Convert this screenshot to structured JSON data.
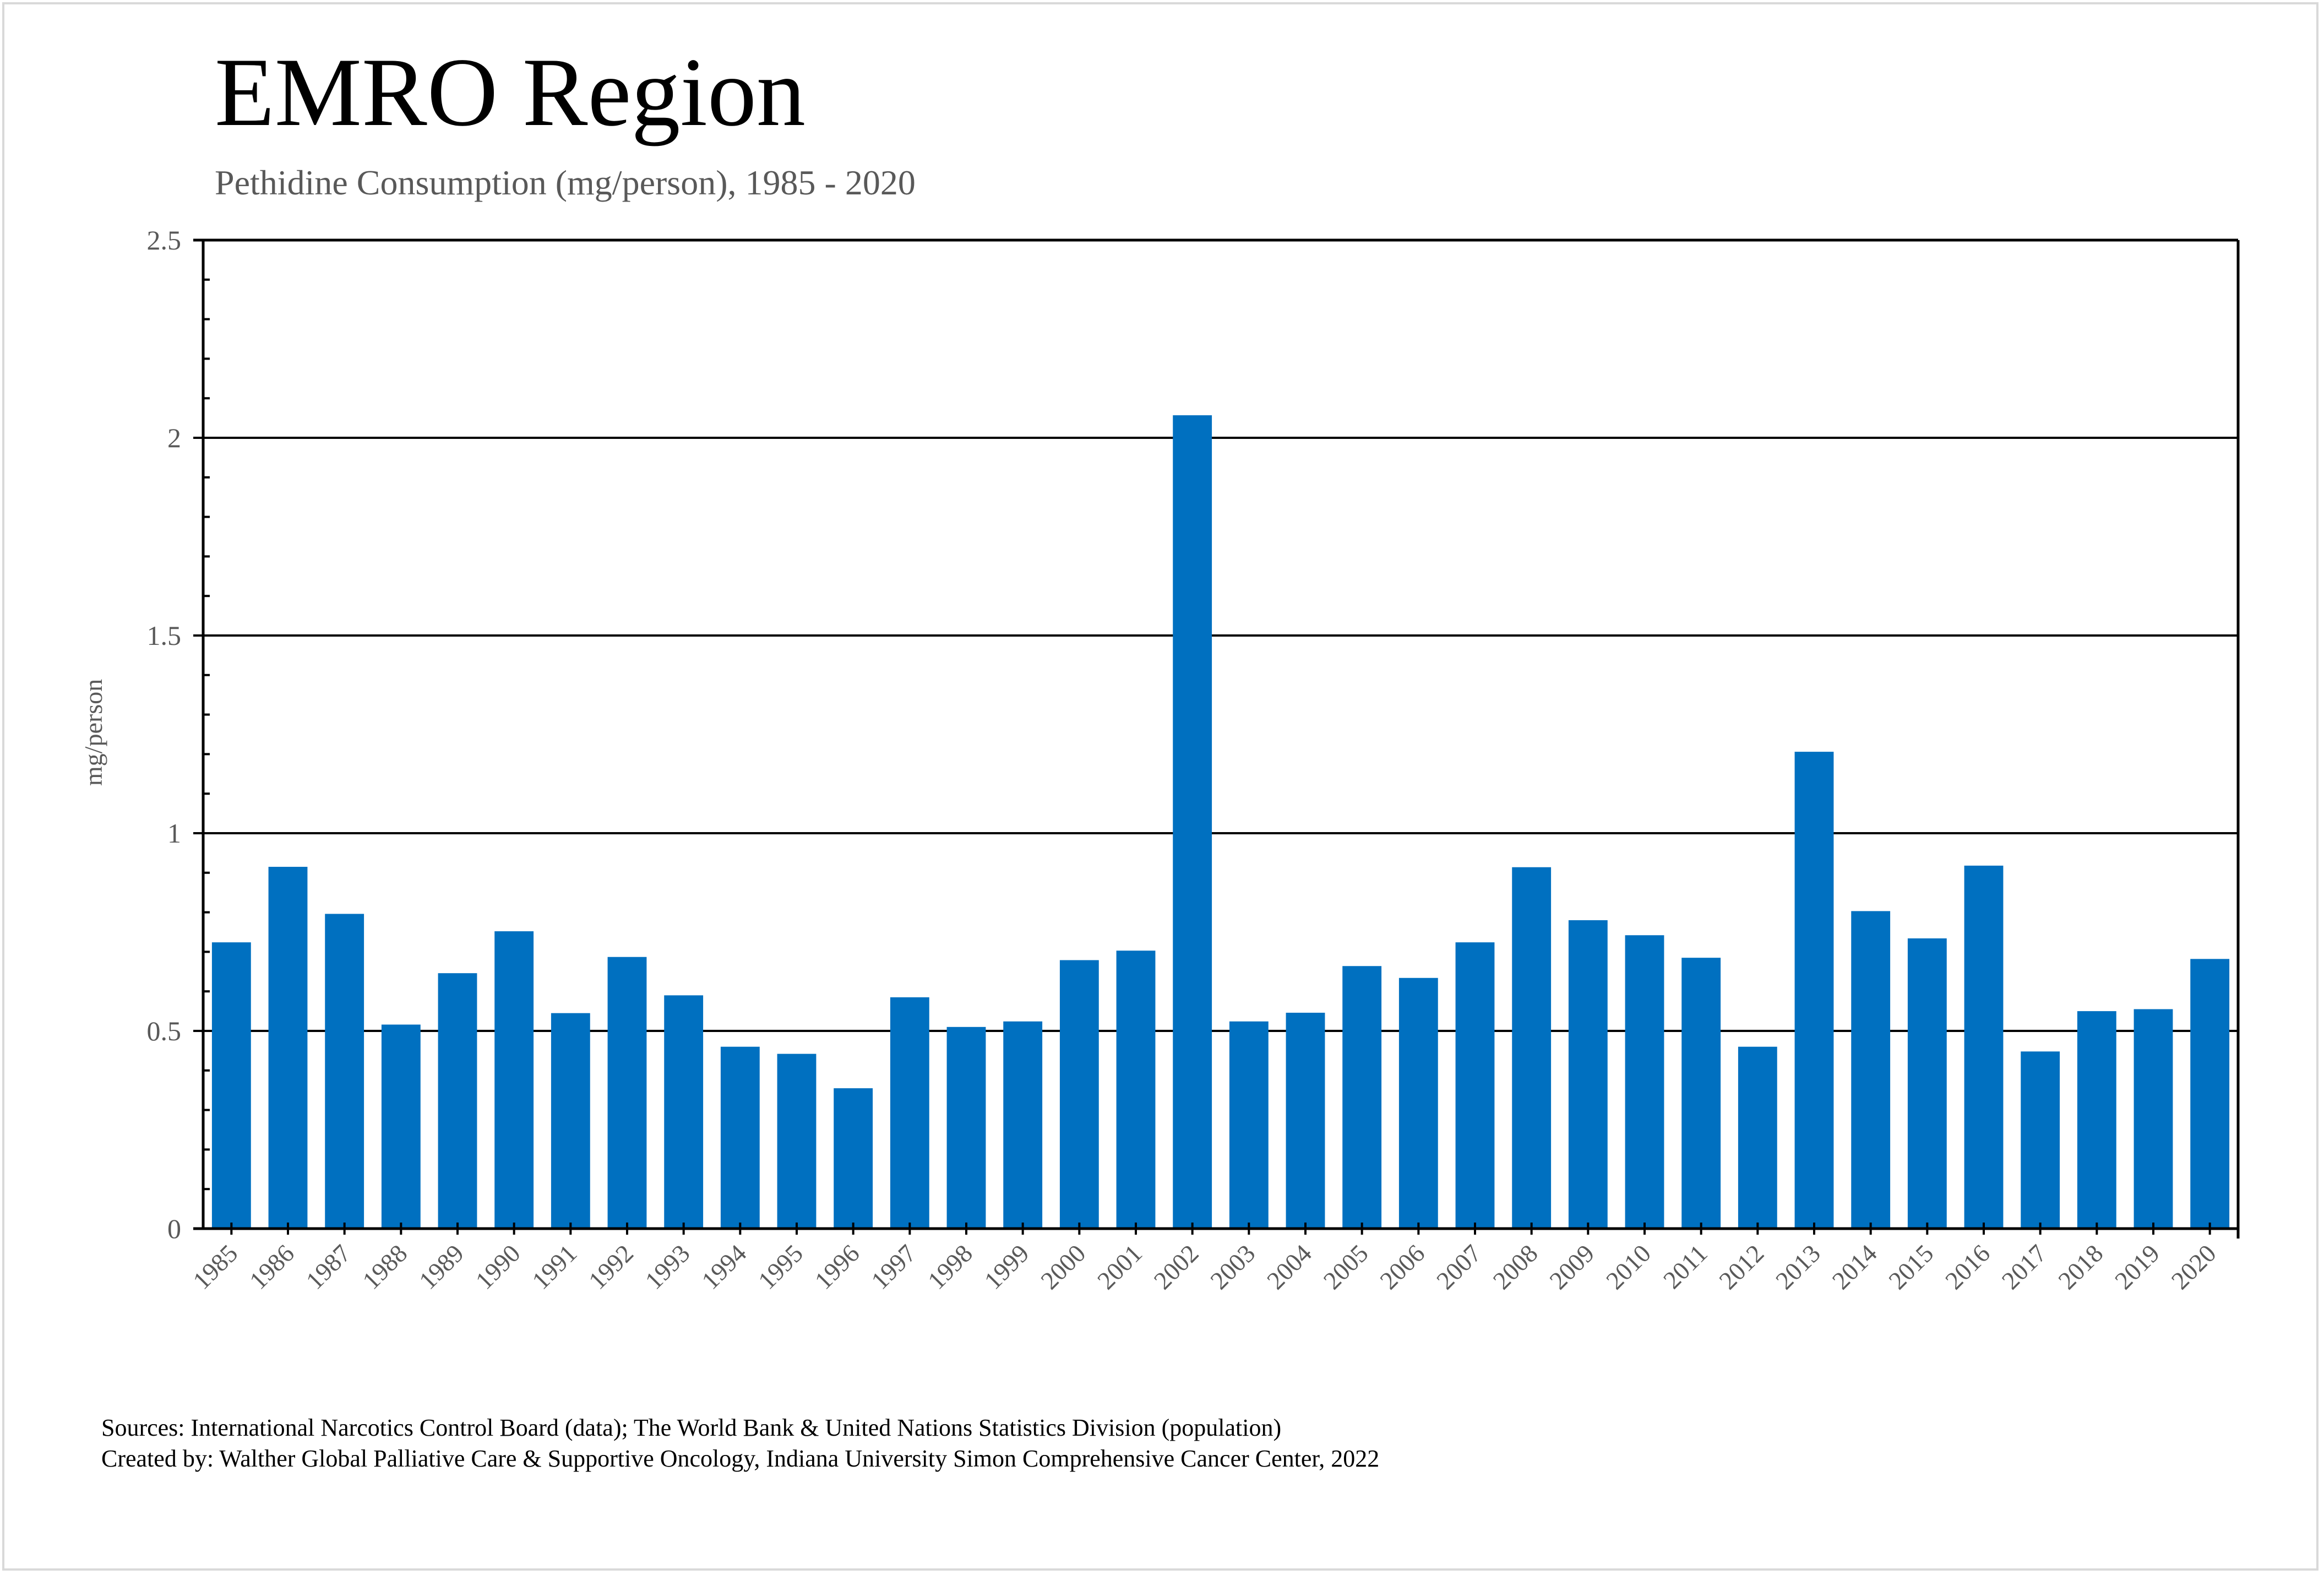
{
  "header": {
    "title": "EMRO Region",
    "subtitle": "Pethidine Consumption (mg/person), 1985 - 2020"
  },
  "footer": {
    "sources": "Sources: International Narcotics Control Board (data); The World Bank & United Nations Statistics Division (population)",
    "created_by": "Created by: Walther Global Palliative Care & Supportive Oncology, Indiana University Simon Comprehensive Cancer Center, 2022"
  },
  "colors": {
    "bar": "#0070C0",
    "gridline": "#000000",
    "tick_text": "#595959"
  },
  "chart_data": {
    "type": "bar",
    "title": "EMRO Region",
    "subtitle": "Pethidine Consumption (mg/person), 1985 - 2020",
    "xlabel": "",
    "ylabel": "mg/person",
    "ylim": [
      0,
      2.5
    ],
    "yticks": [
      "0",
      "0.5",
      "1",
      "1.5",
      "2",
      "2.5"
    ],
    "grid": true,
    "legend": "none",
    "categories": [
      "1985",
      "1986",
      "1987",
      "1988",
      "1989",
      "1990",
      "1991",
      "1992",
      "1993",
      "1994",
      "1995",
      "1996",
      "1997",
      "1998",
      "1999",
      "2000",
      "2001",
      "2002",
      "2003",
      "2004",
      "2005",
      "2006",
      "2007",
      "2008",
      "2009",
      "2010",
      "2011",
      "2012",
      "2013",
      "2014",
      "2015",
      "2016",
      "2017",
      "2018",
      "2019",
      "2020"
    ],
    "values": [
      0.724,
      0.915,
      0.796,
      0.516,
      0.646,
      0.752,
      0.545,
      0.687,
      0.59,
      0.46,
      0.442,
      0.355,
      0.585,
      0.51,
      0.524,
      0.679,
      0.703,
      2.057,
      0.524,
      0.546,
      0.664,
      0.634,
      0.724,
      0.914,
      0.78,
      0.742,
      0.685,
      0.46,
      1.206,
      0.803,
      0.734,
      0.918,
      0.448,
      0.55,
      0.555,
      0.682
    ]
  }
}
